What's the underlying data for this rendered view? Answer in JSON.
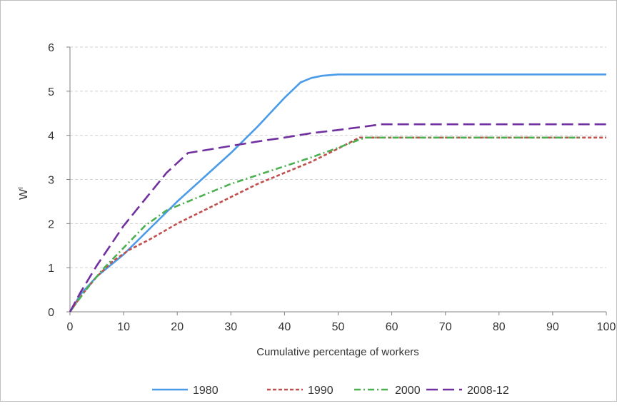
{
  "chart_data": {
    "type": "line",
    "title": "",
    "xlabel": "Cumulative percentage of workers",
    "ylabel": "W",
    "ylabel_sup": "I",
    "xlim": [
      0,
      100
    ],
    "ylim": [
      0,
      6
    ],
    "xticks": [
      0,
      10,
      20,
      30,
      40,
      50,
      60,
      70,
      80,
      90,
      100
    ],
    "yticks": [
      0,
      1,
      2,
      3,
      4,
      5,
      6
    ],
    "grid": "horizontal dashed",
    "legend_position": "bottom",
    "series": [
      {
        "name": "1980",
        "color": "#4a9be8",
        "dash": "solid",
        "points": [
          [
            0,
            0
          ],
          [
            2,
            0.4
          ],
          [
            5,
            0.8
          ],
          [
            10,
            1.3
          ],
          [
            15,
            1.9
          ],
          [
            20,
            2.5
          ],
          [
            25,
            3.05
          ],
          [
            30,
            3.6
          ],
          [
            35,
            4.2
          ],
          [
            40,
            4.85
          ],
          [
            43,
            5.2
          ],
          [
            45,
            5.3
          ],
          [
            47,
            5.35
          ],
          [
            50,
            5.38
          ],
          [
            60,
            5.38
          ],
          [
            70,
            5.38
          ],
          [
            80,
            5.38
          ],
          [
            90,
            5.38
          ],
          [
            100,
            5.38
          ]
        ]
      },
      {
        "name": "1990",
        "color": "#c0504d",
        "dash": "short-dash",
        "points": [
          [
            0,
            0
          ],
          [
            2,
            0.35
          ],
          [
            5,
            0.8
          ],
          [
            8,
            1.15
          ],
          [
            11,
            1.4
          ],
          [
            15,
            1.65
          ],
          [
            20,
            2.0
          ],
          [
            25,
            2.3
          ],
          [
            30,
            2.6
          ],
          [
            35,
            2.9
          ],
          [
            40,
            3.15
          ],
          [
            45,
            3.4
          ],
          [
            50,
            3.7
          ],
          [
            54,
            3.95
          ],
          [
            60,
            3.95
          ],
          [
            70,
            3.95
          ],
          [
            80,
            3.95
          ],
          [
            90,
            3.95
          ],
          [
            100,
            3.95
          ]
        ]
      },
      {
        "name": "2000",
        "color": "#4caf50",
        "dash": "dash-dot",
        "points": [
          [
            0,
            0
          ],
          [
            3,
            0.5
          ],
          [
            6,
            0.95
          ],
          [
            10,
            1.45
          ],
          [
            14,
            1.95
          ],
          [
            18,
            2.3
          ],
          [
            22,
            2.5
          ],
          [
            26,
            2.7
          ],
          [
            30,
            2.9
          ],
          [
            35,
            3.1
          ],
          [
            40,
            3.3
          ],
          [
            45,
            3.5
          ],
          [
            50,
            3.72
          ],
          [
            55,
            3.95
          ],
          [
            60,
            3.95
          ],
          [
            70,
            3.95
          ],
          [
            80,
            3.95
          ],
          [
            90,
            3.95
          ],
          [
            95,
            3.95
          ]
        ]
      },
      {
        "name": "2008-12",
        "color": "#7030a0",
        "dash": "long-dash",
        "points": [
          [
            0,
            0
          ],
          [
            2,
            0.45
          ],
          [
            5,
            1.05
          ],
          [
            10,
            1.95
          ],
          [
            14,
            2.55
          ],
          [
            18,
            3.15
          ],
          [
            22,
            3.6
          ],
          [
            26,
            3.68
          ],
          [
            30,
            3.76
          ],
          [
            35,
            3.86
          ],
          [
            40,
            3.95
          ],
          [
            45,
            4.05
          ],
          [
            50,
            4.12
          ],
          [
            55,
            4.2
          ],
          [
            58,
            4.25
          ],
          [
            60,
            4.25
          ],
          [
            70,
            4.25
          ],
          [
            80,
            4.25
          ],
          [
            90,
            4.25
          ],
          [
            100,
            4.25
          ]
        ]
      }
    ]
  }
}
